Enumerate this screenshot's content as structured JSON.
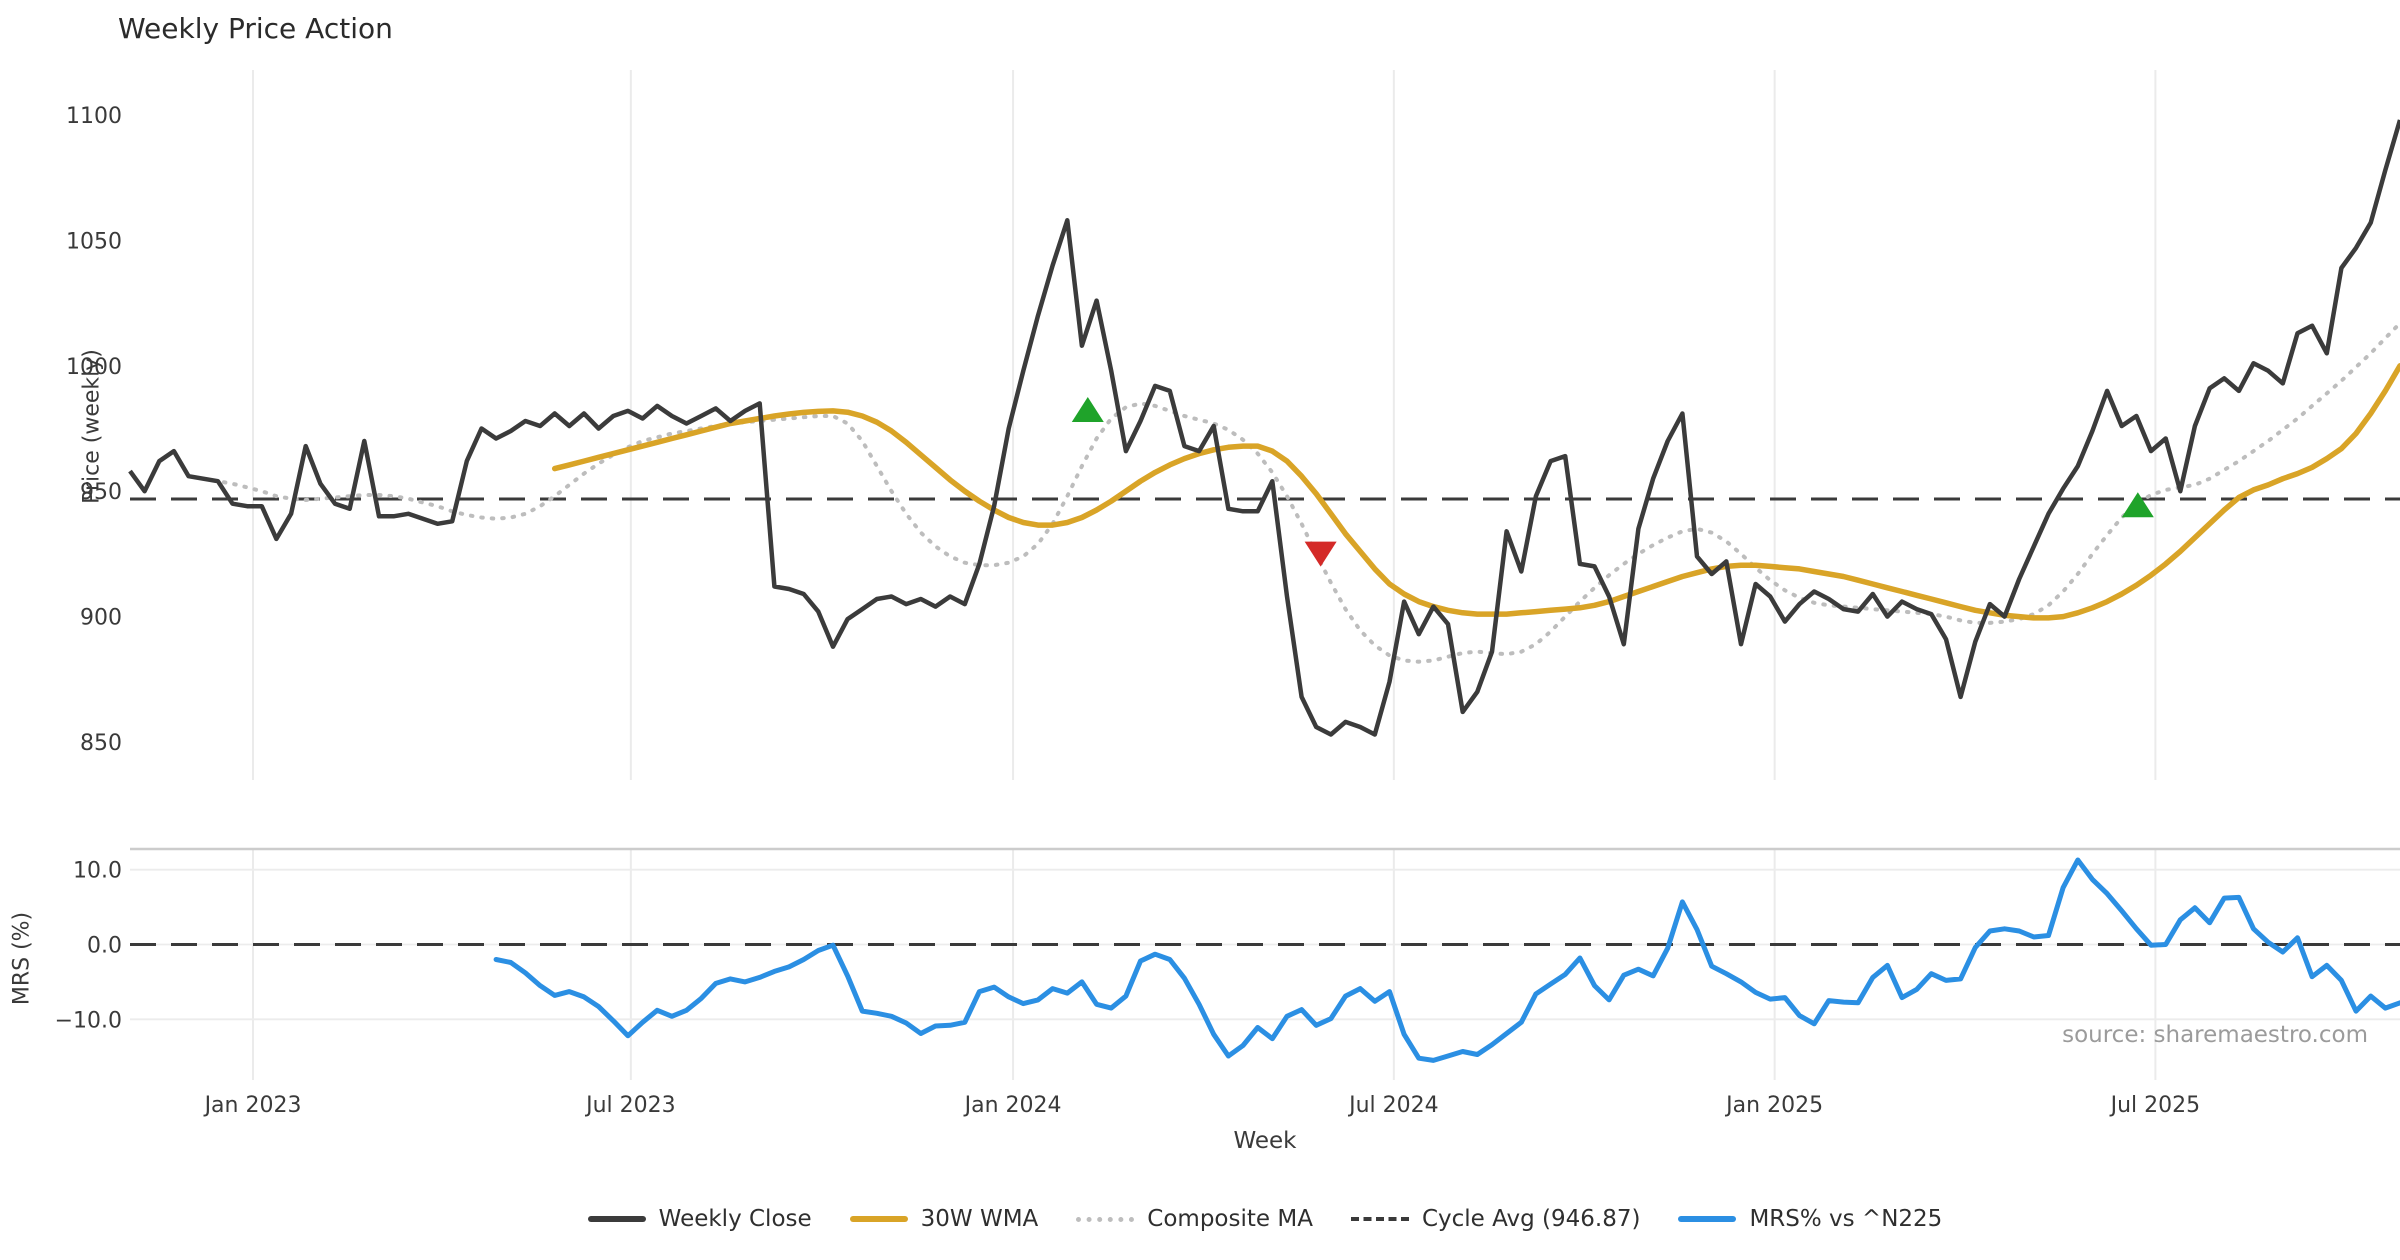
{
  "title": "Weekly Price Action",
  "source": "source: sharemaestro.com",
  "xlabel": "Week",
  "legend": {
    "items": [
      {
        "label": "Weekly Close",
        "style": "solid",
        "color": "#3b3b3b"
      },
      {
        "label": "30W WMA",
        "style": "solid",
        "color": "#d9a427"
      },
      {
        "label": "Composite MA",
        "style": "dotted",
        "color": "#bdbdbd"
      },
      {
        "label": "Cycle Avg (946.87)",
        "style": "dashed",
        "color": "#3a3a3a"
      },
      {
        "label": "MRS% vs ^N225",
        "style": "solid",
        "color": "#2b8fe3"
      }
    ]
  },
  "colors": {
    "close": "#3b3b3b",
    "wma": "#d9a427",
    "composite": "#bdbdbd",
    "cycle_dash": "#3a3a3a",
    "mrs": "#2b8fe3",
    "buy_marker": "#1fa32a",
    "sell_marker": "#d42a28",
    "grid": "#ebebeb",
    "panel_border": "#cccccc",
    "tick_text": "#3a3a3a"
  },
  "chart_data": [
    {
      "type": "line",
      "panel": "price",
      "ylabel": "Price (weekly)",
      "ylim": [
        837,
        1117
      ],
      "yticks": [
        1100,
        1050,
        1000,
        950,
        900,
        850
      ],
      "grid": "vertical-only",
      "cycle_avg": 946.87,
      "xtick_labels": [
        "Jan 2023",
        "Jul 2023",
        "Jan 2024",
        "Jul 2024",
        "Jan 2025",
        "Jul 2025"
      ],
      "xtick_weeks": [
        8.4,
        34.2,
        60.3,
        86.3,
        112.3,
        138.3
      ],
      "series": [
        {
          "name": "Weekly Close",
          "start_week": 0,
          "values": [
            958,
            950,
            962,
            966,
            956,
            955,
            954,
            945,
            944,
            944,
            931,
            941,
            968,
            953,
            945,
            943,
            970,
            940,
            940,
            941,
            939,
            937,
            938,
            962,
            975,
            971,
            974,
            978,
            976,
            981,
            976,
            981,
            975,
            980,
            982,
            979,
            984,
            980,
            977,
            980,
            983,
            978,
            982,
            985,
            912,
            911,
            909,
            902,
            888,
            899,
            903,
            907,
            908,
            905,
            907,
            904,
            908,
            905,
            921,
            944,
            975,
            998,
            1020,
            1040,
            1058,
            1008,
            1026,
            998,
            966,
            978,
            992,
            990,
            968,
            966,
            976,
            943,
            942,
            942,
            954,
            908,
            868,
            856,
            853,
            858,
            856,
            853,
            874,
            906,
            893,
            904,
            897,
            862,
            870,
            886,
            934,
            918,
            948,
            962,
            964,
            921,
            920,
            908,
            889,
            935,
            955,
            970,
            981,
            924,
            917,
            922,
            889,
            913,
            908,
            898,
            905,
            910,
            907,
            903,
            902,
            909,
            900,
            906,
            903,
            901,
            891,
            868,
            890,
            905,
            900,
            915,
            928,
            941,
            951,
            960,
            974,
            990,
            976,
            980,
            966,
            971,
            950,
            976,
            991,
            995,
            990,
            1001,
            998,
            993,
            1013,
            1016,
            1005,
            1039,
            1047,
            1057,
            1078,
            1098
          ]
        },
        {
          "name": "30W WMA",
          "start_week": 29,
          "values": [
            959,
            960.5,
            962,
            963.5,
            965,
            966.5,
            968,
            969.5,
            971,
            972.5,
            974,
            975.5,
            977,
            978,
            979,
            980,
            980.8,
            981.4,
            981.8,
            982,
            981.5,
            980,
            977.5,
            974,
            969.5,
            964.5,
            959.5,
            954.5,
            950,
            946,
            942.5,
            939.5,
            937.5,
            936.5,
            936.5,
            937.5,
            939.5,
            942.5,
            946,
            950,
            954,
            957.5,
            960.5,
            963,
            965,
            966.5,
            967.5,
            968,
            968,
            966,
            962,
            956,
            949,
            941,
            933,
            926,
            919,
            913,
            909,
            906,
            904,
            902.5,
            901.5,
            901,
            901,
            901,
            901.5,
            902,
            902.5,
            903,
            903.5,
            904.5,
            906,
            908,
            910,
            912,
            914,
            916,
            917.5,
            919,
            920,
            920.5,
            920.5,
            920,
            919.5,
            919,
            918,
            917,
            916,
            914.5,
            913,
            911.5,
            910,
            908.5,
            907,
            905.5,
            904,
            902.5,
            901.5,
            900.5,
            900,
            899.5,
            899.5,
            900,
            901.5,
            903.5,
            906,
            909,
            912.5,
            916.5,
            921,
            926,
            931.5,
            937,
            942.5,
            947.5,
            950.5,
            952.5,
            955,
            957,
            959.5,
            963,
            967,
            973,
            981,
            990,
            1000
          ]
        },
        {
          "name": "Composite MA",
          "start_week": 5,
          "values": [
            955,
            954,
            953,
            951.5,
            950,
            948,
            947,
            946.5,
            947,
            947.5,
            948,
            948.5,
            948.5,
            948,
            947,
            945.5,
            944,
            942,
            940.5,
            939.5,
            939,
            939.5,
            941,
            944,
            948,
            952.5,
            957,
            961,
            964.5,
            967.5,
            970,
            971.5,
            973,
            974,
            975,
            976,
            977,
            977.5,
            978,
            978.5,
            979,
            979.5,
            980,
            980,
            977,
            970,
            960,
            950,
            941,
            933.5,
            928,
            924,
            921.5,
            920.5,
            920.5,
            921.5,
            924,
            929,
            937,
            948,
            960,
            971,
            979,
            983.5,
            985,
            984,
            982,
            980,
            978.5,
            977,
            974.5,
            970.5,
            965,
            957.5,
            948,
            937,
            925,
            913.5,
            903,
            894.5,
            888.5,
            884.5,
            882.5,
            882,
            882.5,
            884,
            885.5,
            886,
            885.5,
            885,
            886,
            889,
            894,
            900,
            906,
            911.5,
            916.5,
            921,
            925,
            928.5,
            931.5,
            934,
            935,
            933.5,
            930,
            925,
            919.5,
            914.5,
            910.5,
            907.5,
            905.5,
            904.5,
            904,
            903.5,
            903,
            902.5,
            902,
            901.5,
            901,
            900,
            898.5,
            897.5,
            897.5,
            898,
            899,
            901,
            904.5,
            910,
            917,
            925,
            932.5,
            939.5,
            945,
            948.5,
            950.5,
            951.5,
            952.5,
            955,
            958.5,
            962,
            966,
            970,
            974.5,
            979,
            984,
            989,
            994,
            999.5,
            1005,
            1011,
            1017
          ]
        }
      ],
      "markers": [
        {
          "kind": "buy",
          "week": 65.4,
          "price": 982
        },
        {
          "kind": "sell",
          "week": 81.3,
          "price": 925.5
        },
        {
          "kind": "buy",
          "week": 137.1,
          "price": 944
        }
      ]
    },
    {
      "type": "line",
      "panel": "mrs",
      "ylabel": "MRS (%)",
      "ylim": [
        -18,
        12.6
      ],
      "yticks": [
        10.0,
        0.0,
        -10.0
      ],
      "ytick_labels": [
        "10.0",
        "0.0",
        "−10.0"
      ],
      "zero_dashed_line": 0.0,
      "series": [
        {
          "name": "MRS% vs ^N225",
          "start_week": 25,
          "values": [
            -2.0,
            -2.4,
            -3.8,
            -5.5,
            -6.8,
            -6.3,
            -7.0,
            -8.3,
            -10.2,
            -12.2,
            -10.4,
            -8.8,
            -9.6,
            -8.8,
            -7.2,
            -5.2,
            -4.6,
            -5.0,
            -4.4,
            -3.6,
            -3.0,
            -2.0,
            -0.8,
            -0.1,
            -4.2,
            -8.9,
            -9.2,
            -9.6,
            -10.5,
            -11.9,
            -10.9,
            -10.8,
            -10.4,
            -6.3,
            -5.7,
            -7.0,
            -7.9,
            -7.4,
            -5.9,
            -6.5,
            -5.0,
            -8.0,
            -8.5,
            -6.9,
            -2.2,
            -1.3,
            -2.0,
            -4.5,
            -8.0,
            -12.0,
            -14.9,
            -13.5,
            -11.1,
            -12.6,
            -9.6,
            -8.7,
            -10.8,
            -9.9,
            -6.9,
            -5.9,
            -7.6,
            -6.3,
            -12.0,
            -15.2,
            -15.5,
            -14.9,
            -14.3,
            -14.7,
            -13.4,
            -11.9,
            -10.4,
            -6.6,
            -5.3,
            -4.0,
            -1.8,
            -5.5,
            -7.4,
            -4.1,
            -3.3,
            -4.2,
            -0.5,
            5.7,
            2.0,
            -2.9,
            -3.9,
            -5.0,
            -6.4,
            -7.3,
            -7.1,
            -9.5,
            -10.6,
            -7.5,
            -7.7,
            -7.8,
            -4.4,
            -2.8,
            -7.1,
            -6.0,
            -3.9,
            -4.8,
            -4.6,
            -0.4,
            1.8,
            2.1,
            1.8,
            1.0,
            1.2,
            7.6,
            11.3,
            8.7,
            6.8,
            4.5,
            2.1,
            -0.1,
            0.0,
            3.3,
            4.9,
            2.9,
            6.2,
            6.3,
            2.1,
            0.3,
            -1.0,
            0.9,
            -4.3,
            -2.8,
            -4.8,
            -8.9,
            -6.9,
            -8.5,
            -7.8
          ]
        }
      ]
    }
  ]
}
